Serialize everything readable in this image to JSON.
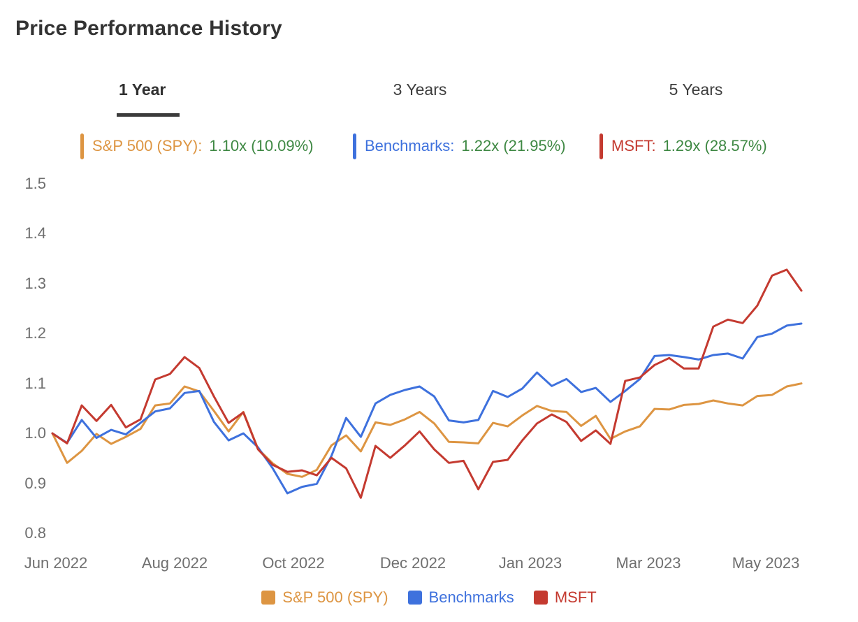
{
  "title": "Price Performance History",
  "tabs": [
    {
      "label": "1 Year",
      "active": true
    },
    {
      "label": "3 Years",
      "active": false
    },
    {
      "label": "5 Years",
      "active": false
    }
  ],
  "colors": {
    "sp500_orange": "#DD9542",
    "benchmarks_blue": "#3E71DD",
    "msft_red": "#C43A30",
    "value_green": "#3E8843",
    "title_dark": "#333333",
    "tick_gray": "#6F6F6F"
  },
  "summary_legend": [
    {
      "label": "S&P 500 (SPY):",
      "value": "1.10x (10.09%)",
      "color": "#DD9542"
    },
    {
      "label": "Benchmarks:",
      "value": "1.22x (21.95%)",
      "color": "#3E71DD"
    },
    {
      "label": "MSFT:",
      "value": "1.29x (28.57%)",
      "color": "#C43A30"
    }
  ],
  "bottom_legend": [
    {
      "label": "S&P 500 (SPY)",
      "color": "#DD9542"
    },
    {
      "label": "Benchmarks",
      "color": "#3E71DD"
    },
    {
      "label": "MSFT",
      "color": "#C43A30"
    }
  ],
  "chart_data": {
    "type": "line",
    "title": "Price Performance History",
    "x_labels": [
      "Jun 2022",
      "Aug 2022",
      "Oct 2022",
      "Dec 2022",
      "Jan 2023",
      "Mar 2023",
      "May 2023"
    ],
    "ytick_labels": [
      "1.5",
      "1.4",
      "1.3",
      "1.2",
      "1.1",
      "1.0",
      "0.9",
      "0.8"
    ],
    "ylim": [
      0.8,
      1.5
    ],
    "grid": false,
    "legend_position": "bottom",
    "series": [
      {
        "name": "S&P 500 (SPY)",
        "color": "#DD9542",
        "final_multiple": "1.10x",
        "final_return_pct": "10.09%",
        "values": [
          1.0,
          0.941,
          0.965,
          0.999,
          0.979,
          0.993,
          1.009,
          1.056,
          1.06,
          1.094,
          1.084,
          1.045,
          1.004,
          1.043,
          0.969,
          0.94,
          0.919,
          0.913,
          0.927,
          0.976,
          0.996,
          0.964,
          1.022,
          1.017,
          1.028,
          1.043,
          1.02,
          0.983,
          0.982,
          0.98,
          1.021,
          1.014,
          1.036,
          1.055,
          1.045,
          1.043,
          1.015,
          1.035,
          0.989,
          1.004,
          1.014,
          1.049,
          1.048,
          1.057,
          1.059,
          1.066,
          1.06,
          1.056,
          1.075,
          1.077,
          1.094,
          1.1
        ]
      },
      {
        "name": "Benchmarks",
        "color": "#3E71DD",
        "final_multiple": "1.22x",
        "final_return_pct": "21.95%",
        "values": [
          1.0,
          0.981,
          1.027,
          0.991,
          1.007,
          0.998,
          1.021,
          1.044,
          1.05,
          1.081,
          1.085,
          1.023,
          0.986,
          1.0,
          0.972,
          0.93,
          0.88,
          0.893,
          0.899,
          0.955,
          1.031,
          0.993,
          1.06,
          1.077,
          1.087,
          1.094,
          1.074,
          1.026,
          1.022,
          1.027,
          1.085,
          1.073,
          1.09,
          1.122,
          1.095,
          1.109,
          1.083,
          1.091,
          1.063,
          1.085,
          1.109,
          1.155,
          1.157,
          1.153,
          1.148,
          1.157,
          1.16,
          1.15,
          1.193,
          1.2,
          1.216,
          1.22
        ]
      },
      {
        "name": "MSFT",
        "color": "#C43A30",
        "final_multiple": "1.29x",
        "final_return_pct": "28.57%",
        "values": [
          1.0,
          0.98,
          1.056,
          1.025,
          1.057,
          1.012,
          1.028,
          1.108,
          1.119,
          1.153,
          1.131,
          1.074,
          1.021,
          1.042,
          0.968,
          0.937,
          0.923,
          0.926,
          0.916,
          0.951,
          0.93,
          0.871,
          0.975,
          0.951,
          0.976,
          1.004,
          0.968,
          0.941,
          0.945,
          0.888,
          0.943,
          0.947,
          0.986,
          1.02,
          1.038,
          1.023,
          0.985,
          1.006,
          0.979,
          1.105,
          1.112,
          1.137,
          1.151,
          1.13,
          1.13,
          1.214,
          1.228,
          1.221,
          1.256,
          1.316,
          1.328,
          1.286
        ]
      }
    ]
  }
}
